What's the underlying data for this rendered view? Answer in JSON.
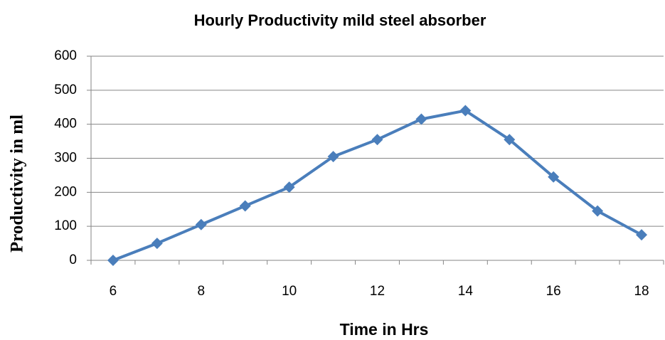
{
  "chart_data": {
    "type": "line",
    "title": "Hourly Productivity mild steel absorber",
    "x_label": "Time in Hrs",
    "y_label": "Productivity in ml",
    "categories": [
      6,
      null,
      8,
      null,
      10,
      null,
      12,
      null,
      14,
      null,
      16,
      null,
      18
    ],
    "series": [
      {
        "name": "Productivity",
        "color": "#4a7ebb",
        "values": [
          0,
          50,
          105,
          160,
          215,
          305,
          355,
          415,
          440,
          355,
          245,
          145,
          75
        ]
      }
    ],
    "ylim": [
      0,
      600
    ],
    "yticks": [
      0,
      100,
      200,
      300,
      400,
      500,
      600
    ],
    "grid": true,
    "legend": false
  }
}
